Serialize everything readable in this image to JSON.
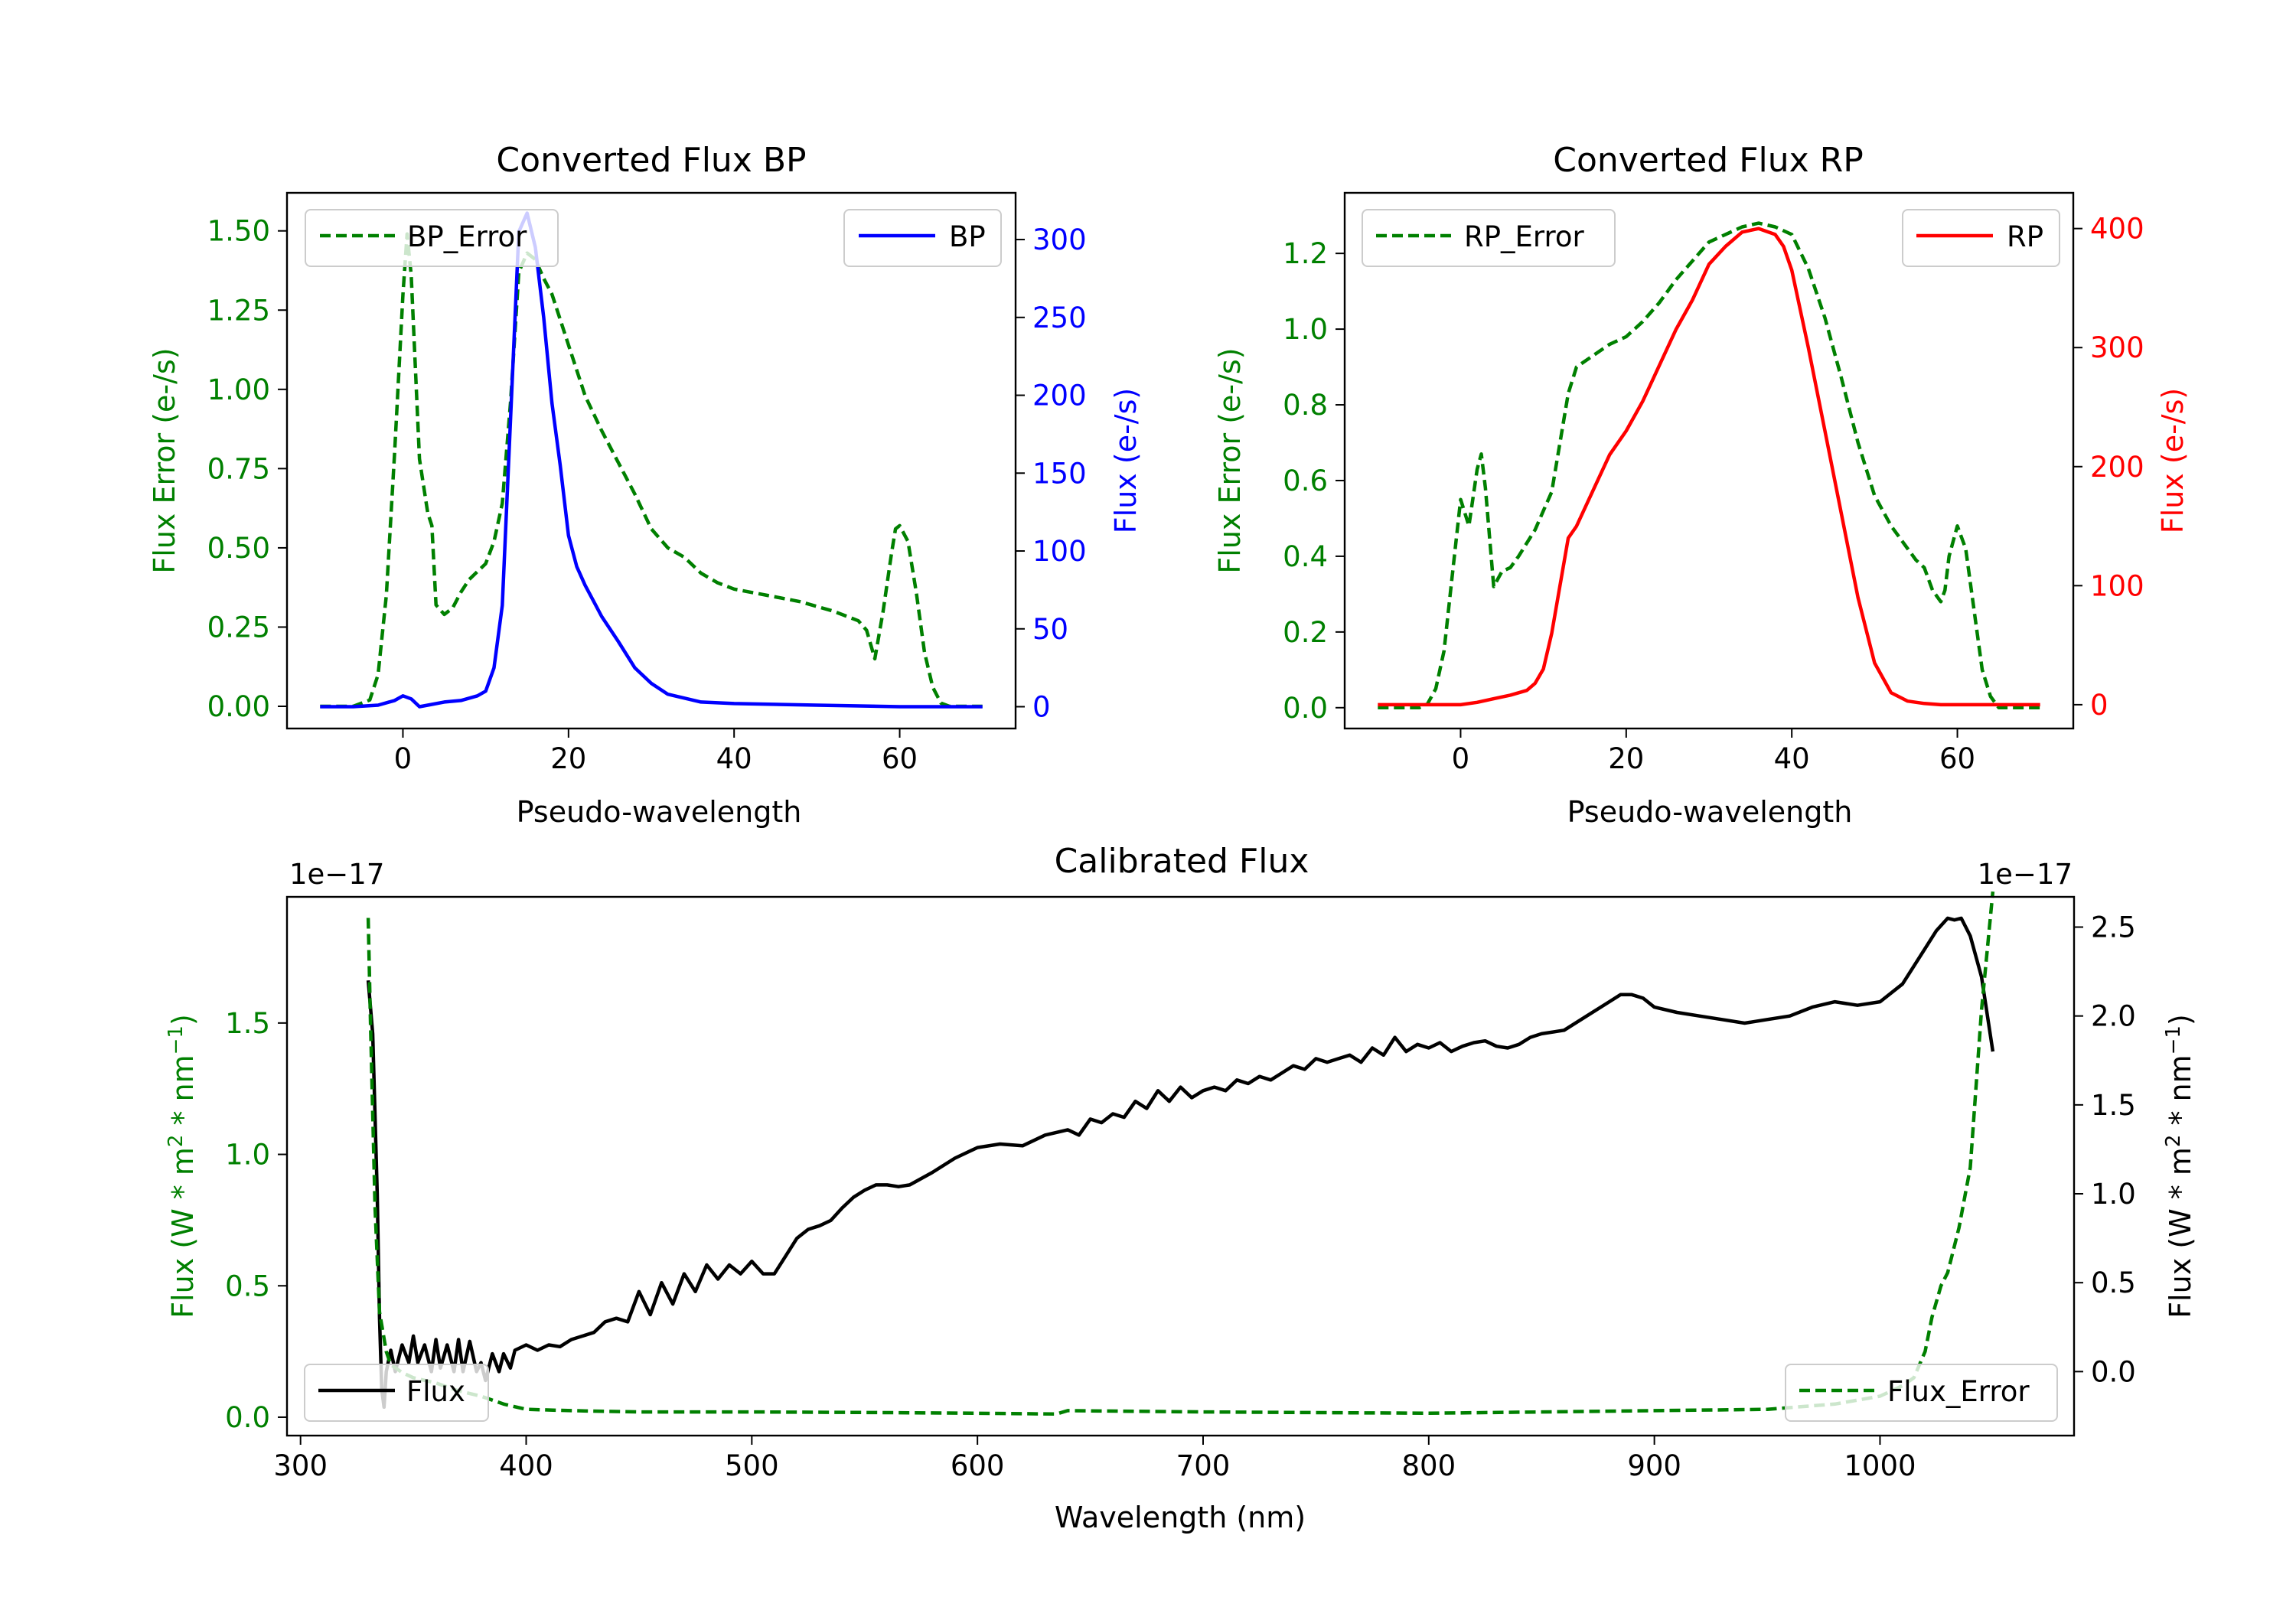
{
  "chart_data": [
    {
      "type": "line",
      "title": "Converted Flux BP",
      "xlabel": "Pseudo-wavelength",
      "ylabel_left": "Flux Error (e-/s)",
      "ylabel_right": "Flux (e-/s)",
      "xlim": [
        -14,
        74
      ],
      "ylim_left": [
        -0.07,
        1.62
      ],
      "ylim_right": [
        -14,
        330
      ],
      "xticks": [
        0,
        20,
        40,
        60
      ],
      "xtick_labels": [
        "0",
        "20",
        "40",
        "60"
      ],
      "yticks_left": [
        0,
        0.25,
        0.5,
        0.75,
        1.0,
        1.25,
        1.5
      ],
      "ytick_labels_left": [
        "0.00",
        "0.25",
        "0.50",
        "0.75",
        "1.00",
        "1.25",
        "1.50"
      ],
      "yticks_right": [
        0,
        50,
        100,
        150,
        200,
        250,
        300
      ],
      "ytick_labels_right": [
        "0",
        "50",
        "100",
        "150",
        "200",
        "250",
        "300"
      ],
      "series": [
        {
          "name": "BP_Error",
          "axis": "left",
          "color": "#008000",
          "style": "dashed",
          "legend": "top-left",
          "x": [
            -10,
            -6,
            -4,
            -3,
            -2,
            -1,
            0,
            0.5,
            1,
            2,
            3,
            3.5,
            4,
            5,
            6,
            7,
            8,
            10,
            11,
            12,
            13,
            14,
            15,
            16,
            17,
            18,
            20,
            22,
            24,
            26,
            28,
            30,
            32,
            34,
            36,
            38,
            40,
            44,
            48,
            52,
            55,
            56,
            57,
            58,
            59,
            59.5,
            60,
            61,
            62,
            63,
            64,
            65,
            66,
            70
          ],
          "y": [
            0.0,
            0.0,
            0.02,
            0.1,
            0.35,
            0.8,
            1.3,
            1.49,
            1.36,
            0.78,
            0.61,
            0.57,
            0.32,
            0.29,
            0.31,
            0.36,
            0.4,
            0.45,
            0.52,
            0.64,
            0.96,
            1.37,
            1.43,
            1.41,
            1.35,
            1.3,
            1.14,
            0.98,
            0.87,
            0.77,
            0.67,
            0.56,
            0.5,
            0.47,
            0.42,
            0.39,
            0.37,
            0.35,
            0.33,
            0.3,
            0.27,
            0.24,
            0.15,
            0.3,
            0.48,
            0.56,
            0.57,
            0.52,
            0.36,
            0.17,
            0.06,
            0.01,
            0.0,
            0.0
          ]
        },
        {
          "name": "BP",
          "axis": "right",
          "color": "#0000ff",
          "style": "solid",
          "legend": "top-right",
          "x": [
            -10,
            -6,
            -3,
            -1,
            0,
            1,
            2,
            3,
            5,
            7,
            9,
            10,
            11,
            12,
            13,
            14,
            15,
            16,
            17,
            18,
            19,
            20,
            21,
            22,
            23,
            24,
            25,
            26,
            28,
            30,
            32,
            36,
            40,
            50,
            60,
            70
          ],
          "y": [
            0,
            0,
            1,
            4,
            7,
            5,
            0,
            1,
            3,
            4,
            7,
            10,
            25,
            65,
            185,
            305,
            317,
            295,
            250,
            195,
            155,
            110,
            90,
            78,
            68,
            58,
            50,
            42,
            25,
            15,
            8,
            3,
            2,
            1,
            0,
            0
          ]
        }
      ]
    },
    {
      "type": "line",
      "title": "Converted Flux RP",
      "xlabel": "Pseudo-wavelength",
      "ylabel_left": "Flux Error (e-/s)",
      "ylabel_right": "Flux (e-/s)",
      "xlim": [
        -14,
        74
      ],
      "ylim_left": [
        -0.055,
        1.36
      ],
      "ylim_right": [
        -20,
        430
      ],
      "xticks": [
        0,
        20,
        40,
        60
      ],
      "xtick_labels": [
        "0",
        "20",
        "40",
        "60"
      ],
      "yticks_left": [
        0,
        0.2,
        0.4,
        0.6,
        0.8,
        1.0,
        1.2
      ],
      "ytick_labels_left": [
        "0.0",
        "0.2",
        "0.4",
        "0.6",
        "0.8",
        "1.0",
        "1.2"
      ],
      "yticks_right": [
        0,
        100,
        200,
        300,
        400
      ],
      "ytick_labels_right": [
        "0",
        "100",
        "200",
        "300",
        "400"
      ],
      "series": [
        {
          "name": "RP_Error",
          "axis": "left",
          "color": "#008000",
          "style": "dashed",
          "legend": "top-left",
          "x": [
            -10,
            -5,
            -4,
            -3,
            -2,
            -1,
            0,
            1,
            2,
            2.5,
            3,
            4,
            5,
            6,
            7,
            9,
            10,
            11,
            12,
            13,
            14,
            16,
            18,
            20,
            22,
            24,
            26,
            28,
            30,
            32,
            34,
            36,
            38,
            40,
            42,
            44,
            46,
            48,
            50,
            52,
            54,
            55,
            56,
            57,
            58,
            58.5,
            59,
            60,
            61,
            62,
            63,
            64,
            65,
            70
          ],
          "y": [
            0.0,
            0.0,
            0.01,
            0.05,
            0.15,
            0.35,
            0.55,
            0.48,
            0.63,
            0.67,
            0.58,
            0.32,
            0.36,
            0.37,
            0.4,
            0.47,
            0.52,
            0.57,
            0.7,
            0.83,
            0.9,
            0.93,
            0.96,
            0.98,
            1.02,
            1.07,
            1.13,
            1.18,
            1.23,
            1.25,
            1.27,
            1.28,
            1.27,
            1.25,
            1.16,
            1.03,
            0.87,
            0.7,
            0.56,
            0.48,
            0.42,
            0.39,
            0.37,
            0.31,
            0.28,
            0.31,
            0.4,
            0.48,
            0.42,
            0.26,
            0.1,
            0.03,
            0.0,
            0.0
          ]
        },
        {
          "name": "RP",
          "axis": "right",
          "color": "#ff0000",
          "style": "solid",
          "legend": "top-right",
          "x": [
            -10,
            0,
            2,
            4,
            6,
            8,
            9,
            10,
            11,
            12,
            13,
            14,
            16,
            18,
            20,
            22,
            24,
            26,
            28,
            30,
            32,
            34,
            36,
            38,
            39,
            40,
            42,
            44,
            46,
            48,
            50,
            52,
            54,
            56,
            58,
            60,
            65,
            70
          ],
          "y": [
            0,
            0,
            2,
            5,
            8,
            12,
            18,
            30,
            60,
            100,
            140,
            150,
            180,
            210,
            230,
            255,
            285,
            315,
            340,
            370,
            385,
            397,
            400,
            395,
            385,
            365,
            300,
            230,
            160,
            90,
            35,
            10,
            3,
            1,
            0,
            0,
            0,
            0
          ]
        }
      ]
    },
    {
      "type": "line",
      "title": "Calibrated Flux",
      "xlabel": "Wavelength (nm)",
      "ylabel_left": "Flux (W * m^2 * nm^-1)",
      "ylabel_right": "Flux (W * m^2 * nm^-1)",
      "offset_label_left": "1e−17",
      "offset_label_right": "1e−17",
      "xlim": [
        294,
        1086
      ],
      "ylim_left": [
        -0.07,
        1.98
      ],
      "ylim_right": [
        -0.36,
        2.67
      ],
      "xticks": [
        300,
        400,
        500,
        600,
        700,
        800,
        900,
        1000
      ],
      "xtick_labels": [
        "300",
        "400",
        "500",
        "600",
        "700",
        "800",
        "900",
        "1000"
      ],
      "yticks_left": [
        0.0,
        0.5,
        1.0,
        1.5
      ],
      "ytick_labels_left": [
        "0.0",
        "0.5",
        "1.0",
        "1.5"
      ],
      "yticks_right": [
        0.0,
        0.5,
        1.0,
        1.5,
        2.0,
        2.5
      ],
      "ytick_labels_right": [
        "0.0",
        "0.5",
        "1.0",
        "1.5",
        "2.0",
        "2.5"
      ],
      "series": [
        {
          "name": "Flux",
          "axis": "right",
          "color": "#000000",
          "style": "solid",
          "legend": "bottom-left",
          "x": [
            330,
            332,
            334,
            335,
            336,
            337,
            338,
            340,
            342,
            345,
            348,
            350,
            352,
            355,
            358,
            360,
            362,
            365,
            368,
            370,
            372,
            375,
            378,
            380,
            382,
            385,
            388,
            390,
            393,
            395,
            400,
            405,
            410,
            415,
            420,
            425,
            430,
            435,
            440,
            445,
            450,
            455,
            460,
            465,
            470,
            475,
            480,
            485,
            490,
            495,
            500,
            505,
            510,
            515,
            520,
            525,
            530,
            535,
            540,
            545,
            550,
            555,
            560,
            565,
            570,
            580,
            590,
            600,
            610,
            620,
            630,
            640,
            645,
            650,
            655,
            660,
            665,
            670,
            675,
            680,
            685,
            690,
            695,
            700,
            705,
            710,
            715,
            720,
            725,
            730,
            735,
            740,
            745,
            750,
            755,
            760,
            765,
            770,
            775,
            780,
            785,
            790,
            795,
            800,
            805,
            810,
            815,
            820,
            825,
            830,
            835,
            840,
            845,
            850,
            860,
            870,
            880,
            885,
            890,
            895,
            900,
            910,
            920,
            930,
            940,
            950,
            960,
            970,
            980,
            990,
            1000,
            1010,
            1020,
            1025,
            1030,
            1033,
            1036,
            1040,
            1045,
            1050
          ],
          "y": [
            2.2,
            1.9,
            1.0,
            0.3,
            -0.1,
            -0.2,
            0.0,
            0.12,
            0.0,
            0.15,
            0.05,
            0.2,
            0.05,
            0.15,
            0.0,
            0.18,
            0.02,
            0.15,
            0.0,
            0.18,
            0.0,
            0.17,
            0.0,
            0.05,
            -0.05,
            0.1,
            0.0,
            0.1,
            0.02,
            0.12,
            0.15,
            0.12,
            0.15,
            0.14,
            0.18,
            0.2,
            0.22,
            0.28,
            0.3,
            0.28,
            0.45,
            0.32,
            0.5,
            0.38,
            0.55,
            0.45,
            0.6,
            0.52,
            0.6,
            0.55,
            0.62,
            0.55,
            0.55,
            0.65,
            0.75,
            0.8,
            0.82,
            0.85,
            0.92,
            0.98,
            1.02,
            1.05,
            1.05,
            1.04,
            1.05,
            1.12,
            1.2,
            1.26,
            1.28,
            1.27,
            1.33,
            1.36,
            1.33,
            1.42,
            1.4,
            1.45,
            1.43,
            1.52,
            1.48,
            1.58,
            1.52,
            1.6,
            1.54,
            1.58,
            1.6,
            1.58,
            1.64,
            1.62,
            1.66,
            1.64,
            1.68,
            1.72,
            1.7,
            1.76,
            1.74,
            1.76,
            1.78,
            1.74,
            1.82,
            1.78,
            1.88,
            1.8,
            1.84,
            1.82,
            1.85,
            1.8,
            1.83,
            1.85,
            1.86,
            1.83,
            1.82,
            1.84,
            1.88,
            1.9,
            1.92,
            2.0,
            2.08,
            2.12,
            2.12,
            2.1,
            2.05,
            2.02,
            2.0,
            1.98,
            1.96,
            1.98,
            2.0,
            2.05,
            2.08,
            2.06,
            2.08,
            2.18,
            2.38,
            2.48,
            2.55,
            2.54,
            2.55,
            2.45,
            2.22,
            1.8
          ]
        },
        {
          "name": "Flux_Error",
          "axis": "left",
          "color": "#008000",
          "style": "dashed",
          "legend": "bottom-right",
          "x": [
            330,
            331,
            333,
            335,
            338,
            340,
            345,
            350,
            360,
            370,
            380,
            390,
            400,
            420,
            450,
            500,
            550,
            600,
            635,
            640,
            700,
            800,
            900,
            950,
            980,
            1000,
            1010,
            1015,
            1020,
            1023,
            1027,
            1030,
            1035,
            1040,
            1045,
            1050
          ],
          "y": [
            1.9,
            1.5,
            0.8,
            0.4,
            0.25,
            0.2,
            0.17,
            0.15,
            0.13,
            0.1,
            0.08,
            0.05,
            0.03,
            0.025,
            0.02,
            0.02,
            0.018,
            0.015,
            0.012,
            0.025,
            0.02,
            0.015,
            0.025,
            0.03,
            0.05,
            0.08,
            0.12,
            0.15,
            0.25,
            0.38,
            0.5,
            0.55,
            0.72,
            0.95,
            1.55,
            2.0
          ]
        }
      ]
    }
  ]
}
